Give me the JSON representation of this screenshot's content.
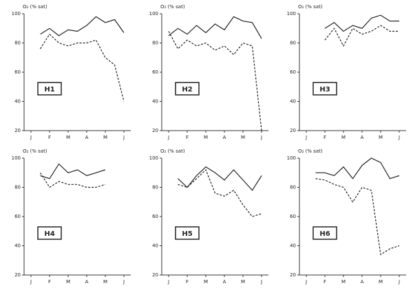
{
  "chart_data": [
    {
      "type": "line",
      "title": "H1",
      "ylabel": "O₂ (% sat)",
      "categories": [
        "J",
        null,
        "F",
        null,
        "M",
        null,
        "A",
        null,
        "M",
        null,
        "J"
      ],
      "ylim": [
        20,
        100
      ],
      "yticks": [
        20,
        40,
        60,
        80,
        100
      ],
      "series": [
        {
          "color": "#222",
          "dashed": false,
          "values": [
            null,
            86,
            90,
            85,
            89,
            88,
            92,
            98,
            94,
            96,
            87
          ]
        },
        {
          "color": "#222",
          "dashed": true,
          "values": [
            null,
            76,
            86,
            80,
            78,
            80,
            80,
            82,
            70,
            65,
            40
          ]
        }
      ]
    },
    {
      "type": "line",
      "title": "H2",
      "ylabel": "O₂ (% sat)",
      "categories": [
        "J",
        null,
        "F",
        null,
        "M",
        null,
        "A",
        null,
        "M",
        null,
        "J"
      ],
      "ylim": [
        20,
        100
      ],
      "yticks": [
        20,
        40,
        60,
        80,
        100
      ],
      "series": [
        {
          "color": "#222",
          "dashed": false,
          "values": [
            85,
            90,
            86,
            92,
            87,
            93,
            89,
            98,
            95,
            94,
            83
          ]
        },
        {
          "color": "#222",
          "dashed": true,
          "values": [
            88,
            76,
            82,
            78,
            80,
            75,
            78,
            72,
            80,
            78,
            20
          ]
        }
      ]
    },
    {
      "type": "line",
      "title": "H3",
      "ylabel": "O₂ (% sat)",
      "categories": [
        "J",
        null,
        "F",
        null,
        "M",
        null,
        "A",
        null,
        "M",
        null,
        "J"
      ],
      "ylim": [
        20,
        100
      ],
      "yticks": [
        20,
        40,
        60,
        80,
        100
      ],
      "series": [
        {
          "color": "#222",
          "dashed": false,
          "values": [
            null,
            null,
            90,
            94,
            88,
            92,
            90,
            97,
            99,
            95,
            95
          ]
        },
        {
          "color": "#222",
          "dashed": true,
          "values": [
            null,
            null,
            82,
            90,
            78,
            90,
            86,
            88,
            92,
            88,
            88
          ]
        }
      ]
    },
    {
      "type": "line",
      "title": "H4",
      "ylabel": "O₂ (% sat)",
      "categories": [
        "J",
        null,
        "F",
        null,
        "M",
        null,
        "A",
        null,
        "M",
        null,
        "J"
      ],
      "ylim": [
        20,
        100
      ],
      "yticks": [
        20,
        40,
        60,
        80,
        100
      ],
      "series": [
        {
          "color": "#222",
          "dashed": false,
          "values": [
            null,
            88,
            86,
            96,
            90,
            92,
            88,
            90,
            92,
            null,
            null
          ]
        },
        {
          "color": "#222",
          "dashed": true,
          "values": [
            null,
            90,
            80,
            84,
            82,
            82,
            80,
            80,
            82,
            null,
            null
          ]
        }
      ]
    },
    {
      "type": "line",
      "title": "H5",
      "ylabel": "O₂ (% sat)",
      "categories": [
        "J",
        null,
        "F",
        null,
        "M",
        null,
        "A",
        null,
        "M",
        null,
        "J"
      ],
      "ylim": [
        20,
        100
      ],
      "yticks": [
        20,
        40,
        60,
        80,
        100
      ],
      "series": [
        {
          "color": "#222",
          "dashed": false,
          "values": [
            null,
            86,
            80,
            88,
            94,
            90,
            85,
            92,
            85,
            78,
            88
          ]
        },
        {
          "color": "#222",
          "dashed": true,
          "values": [
            null,
            82,
            80,
            86,
            92,
            76,
            74,
            78,
            68,
            60,
            62
          ]
        }
      ]
    },
    {
      "type": "line",
      "title": "H6",
      "ylabel": "O₂ (% sat)",
      "categories": [
        "J",
        null,
        "F",
        null,
        "M",
        null,
        "A",
        null,
        "M",
        null,
        "J"
      ],
      "ylim": [
        20,
        100
      ],
      "yticks": [
        20,
        40,
        60,
        80,
        100
      ],
      "series": [
        {
          "color": "#222",
          "dashed": false,
          "values": [
            null,
            90,
            90,
            88,
            94,
            86,
            95,
            100,
            97,
            86,
            88
          ]
        },
        {
          "color": "#222",
          "dashed": true,
          "values": [
            null,
            86,
            85,
            82,
            80,
            70,
            80,
            78,
            34,
            38,
            40
          ]
        }
      ]
    }
  ]
}
